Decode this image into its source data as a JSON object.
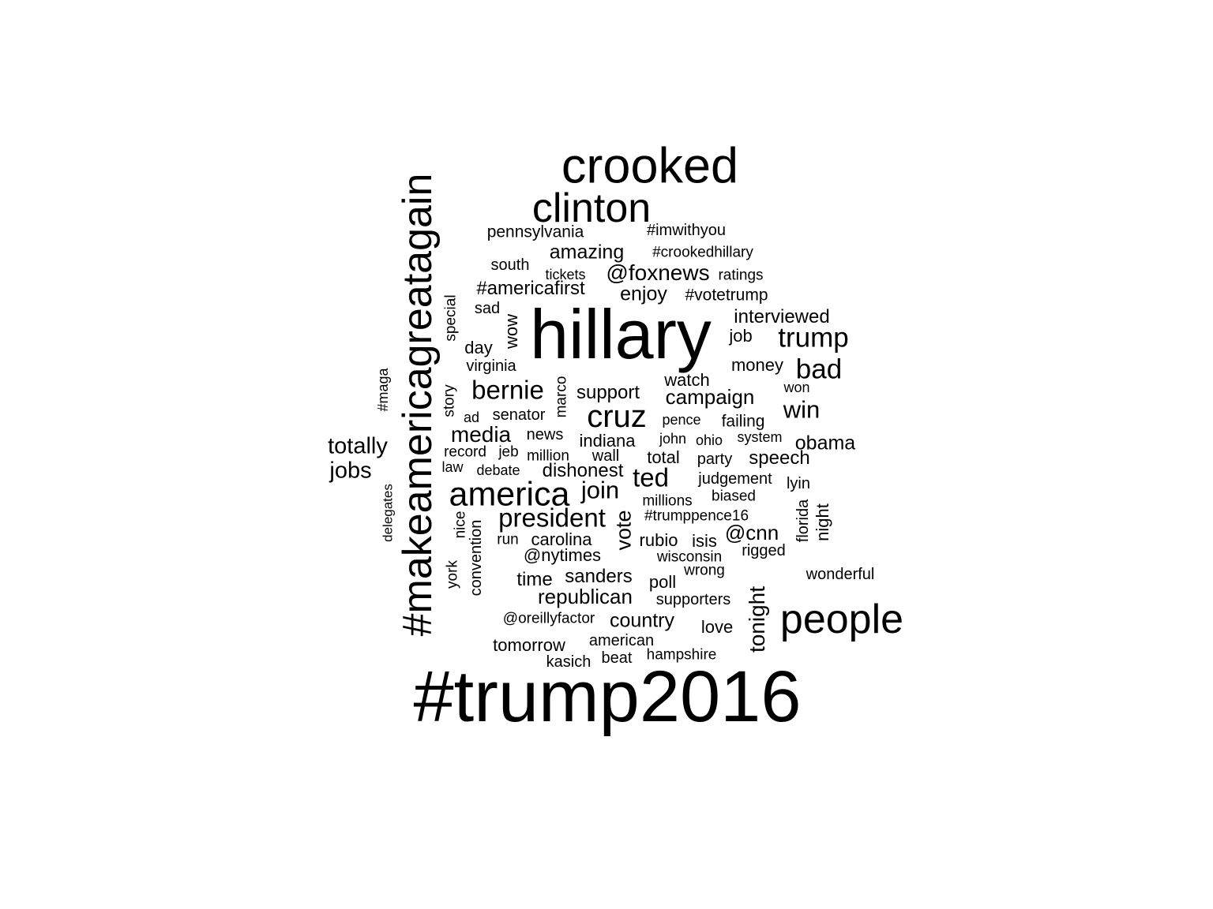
{
  "words": [
    {
      "text": "#trump2016",
      "size": 92,
      "vertical": false
    },
    {
      "text": "hillary",
      "size": 88,
      "vertical": false
    },
    {
      "text": "#makeamericagreatagain",
      "size": 52,
      "vertical": true
    },
    {
      "text": "crooked",
      "size": 63,
      "vertical": false
    },
    {
      "text": "clinton",
      "size": 52,
      "vertical": false
    },
    {
      "text": "people",
      "size": 52,
      "vertical": false
    },
    {
      "text": "america",
      "size": 43,
      "vertical": false
    },
    {
      "text": "cruz",
      "size": 40,
      "vertical": false
    },
    {
      "text": "trump",
      "size": 35,
      "vertical": false
    },
    {
      "text": "bad",
      "size": 35,
      "vertical": false
    },
    {
      "text": "bernie",
      "size": 33,
      "vertical": false
    },
    {
      "text": "president",
      "size": 33,
      "vertical": false
    },
    {
      "text": "ted",
      "size": 33,
      "vertical": false
    },
    {
      "text": "win",
      "size": 31,
      "vertical": false
    },
    {
      "text": "join",
      "size": 31,
      "vertical": false
    },
    {
      "text": "vote",
      "size": 27,
      "vertical": true
    },
    {
      "text": "@foxnews",
      "size": 28,
      "vertical": false
    },
    {
      "text": "totally",
      "size": 29,
      "vertical": false
    },
    {
      "text": "jobs",
      "size": 29,
      "vertical": false
    },
    {
      "text": "media",
      "size": 28,
      "vertical": false
    },
    {
      "text": "tonight",
      "size": 28,
      "vertical": true
    },
    {
      "text": "campaign",
      "size": 26,
      "vertical": false
    },
    {
      "text": "republican",
      "size": 26,
      "vertical": false
    },
    {
      "text": "@cnn",
      "size": 26,
      "vertical": false
    },
    {
      "text": "amazing",
      "size": 25,
      "vertical": false
    },
    {
      "text": "obama",
      "size": 25,
      "vertical": false
    },
    {
      "text": "enjoy",
      "size": 25,
      "vertical": false
    },
    {
      "text": "country",
      "size": 25,
      "vertical": false
    },
    {
      "text": "sanders",
      "size": 24,
      "vertical": false
    },
    {
      "text": "interviewed",
      "size": 24,
      "vertical": false
    },
    {
      "text": "dishonest",
      "size": 24,
      "vertical": false
    },
    {
      "text": "#americafirst",
      "size": 24,
      "vertical": false
    },
    {
      "text": "support",
      "size": 24,
      "vertical": false
    },
    {
      "text": "speech",
      "size": 24,
      "vertical": false
    },
    {
      "text": "time",
      "size": 24,
      "vertical": false
    },
    {
      "text": "money",
      "size": 22,
      "vertical": false
    },
    {
      "text": "watch",
      "size": 22,
      "vertical": false
    },
    {
      "text": "indiana",
      "size": 22,
      "vertical": false
    },
    {
      "text": "carolina",
      "size": 22,
      "vertical": false
    },
    {
      "text": "rubio",
      "size": 22,
      "vertical": false
    },
    {
      "text": "pennsylvania",
      "size": 21,
      "vertical": false
    },
    {
      "text": "#votetrump",
      "size": 21,
      "vertical": false
    },
    {
      "text": "@nytimes",
      "size": 22,
      "vertical": false
    },
    {
      "text": "tomorrow",
      "size": 22,
      "vertical": false
    },
    {
      "text": "total",
      "size": 22,
      "vertical": false
    },
    {
      "text": "poll",
      "size": 22,
      "vertical": false
    },
    {
      "text": "love",
      "size": 22,
      "vertical": false
    },
    {
      "text": "isis",
      "size": 22,
      "vertical": false
    },
    {
      "text": "wow",
      "size": 22,
      "vertical": true
    },
    {
      "text": "day",
      "size": 22,
      "vertical": false
    },
    {
      "text": "job",
      "size": 22,
      "vertical": false
    },
    {
      "text": "failing",
      "size": 21,
      "vertical": false
    },
    {
      "text": "#imwithyou",
      "size": 20,
      "vertical": false
    },
    {
      "text": "south",
      "size": 20,
      "vertical": false
    },
    {
      "text": "sad",
      "size": 20,
      "vertical": false
    },
    {
      "text": "virginia",
      "size": 20,
      "vertical": false
    },
    {
      "text": "senator",
      "size": 20,
      "vertical": false
    },
    {
      "text": "news",
      "size": 20,
      "vertical": false
    },
    {
      "text": "wall",
      "size": 20,
      "vertical": false
    },
    {
      "text": "party",
      "size": 20,
      "vertical": false
    },
    {
      "text": "judgement",
      "size": 20,
      "vertical": false
    },
    {
      "text": "lyin",
      "size": 20,
      "vertical": false
    },
    {
      "text": "night",
      "size": 22,
      "vertical": true
    },
    {
      "text": "convention",
      "size": 20,
      "vertical": true
    },
    {
      "text": "supporters",
      "size": 20,
      "vertical": false
    },
    {
      "text": "american",
      "size": 20,
      "vertical": false
    },
    {
      "text": "kasich",
      "size": 20,
      "vertical": false
    },
    {
      "text": "beat",
      "size": 20,
      "vertical": false
    },
    {
      "text": "rigged",
      "size": 20,
      "vertical": false
    },
    {
      "text": "wonderful",
      "size": 20,
      "vertical": false
    },
    {
      "text": "#crookedhillary",
      "size": 19,
      "vertical": false
    },
    {
      "text": "ratings",
      "size": 19,
      "vertical": false
    },
    {
      "text": "special",
      "size": 19,
      "vertical": true
    },
    {
      "text": "story",
      "size": 19,
      "vertical": true
    },
    {
      "text": "marco",
      "size": 19,
      "vertical": true
    },
    {
      "text": "pence",
      "size": 18,
      "vertical": false
    },
    {
      "text": "system",
      "size": 18,
      "vertical": false
    },
    {
      "text": "record",
      "size": 19,
      "vertical": false
    },
    {
      "text": "jeb",
      "size": 19,
      "vertical": false
    },
    {
      "text": "million",
      "size": 19,
      "vertical": false
    },
    {
      "text": "millions",
      "size": 19,
      "vertical": false
    },
    {
      "text": "biased",
      "size": 19,
      "vertical": false
    },
    {
      "text": "#trumppence16",
      "size": 19,
      "vertical": false
    },
    {
      "text": "wisconsin",
      "size": 19,
      "vertical": false
    },
    {
      "text": "wrong",
      "size": 19,
      "vertical": false
    },
    {
      "text": "florida",
      "size": 20,
      "vertical": true
    },
    {
      "text": "nice",
      "size": 19,
      "vertical": true
    },
    {
      "text": "york",
      "size": 19,
      "vertical": true
    },
    {
      "text": "@oreillyfactor",
      "size": 19,
      "vertical": false
    },
    {
      "text": "hampshire",
      "size": 19,
      "vertical": false
    },
    {
      "text": "run",
      "size": 19,
      "vertical": false
    },
    {
      "text": "debate",
      "size": 18,
      "vertical": false
    },
    {
      "text": "john",
      "size": 18,
      "vertical": false
    },
    {
      "text": "ohio",
      "size": 18,
      "vertical": false
    },
    {
      "text": "won",
      "size": 18,
      "vertical": false
    },
    {
      "text": "tickets",
      "size": 18,
      "vertical": false
    },
    {
      "text": "ad",
      "size": 18,
      "vertical": false
    },
    {
      "text": "law",
      "size": 18,
      "vertical": false
    },
    {
      "text": "#maga",
      "size": 18,
      "vertical": true
    },
    {
      "text": "delegates",
      "size": 17,
      "vertical": true
    }
  ]
}
